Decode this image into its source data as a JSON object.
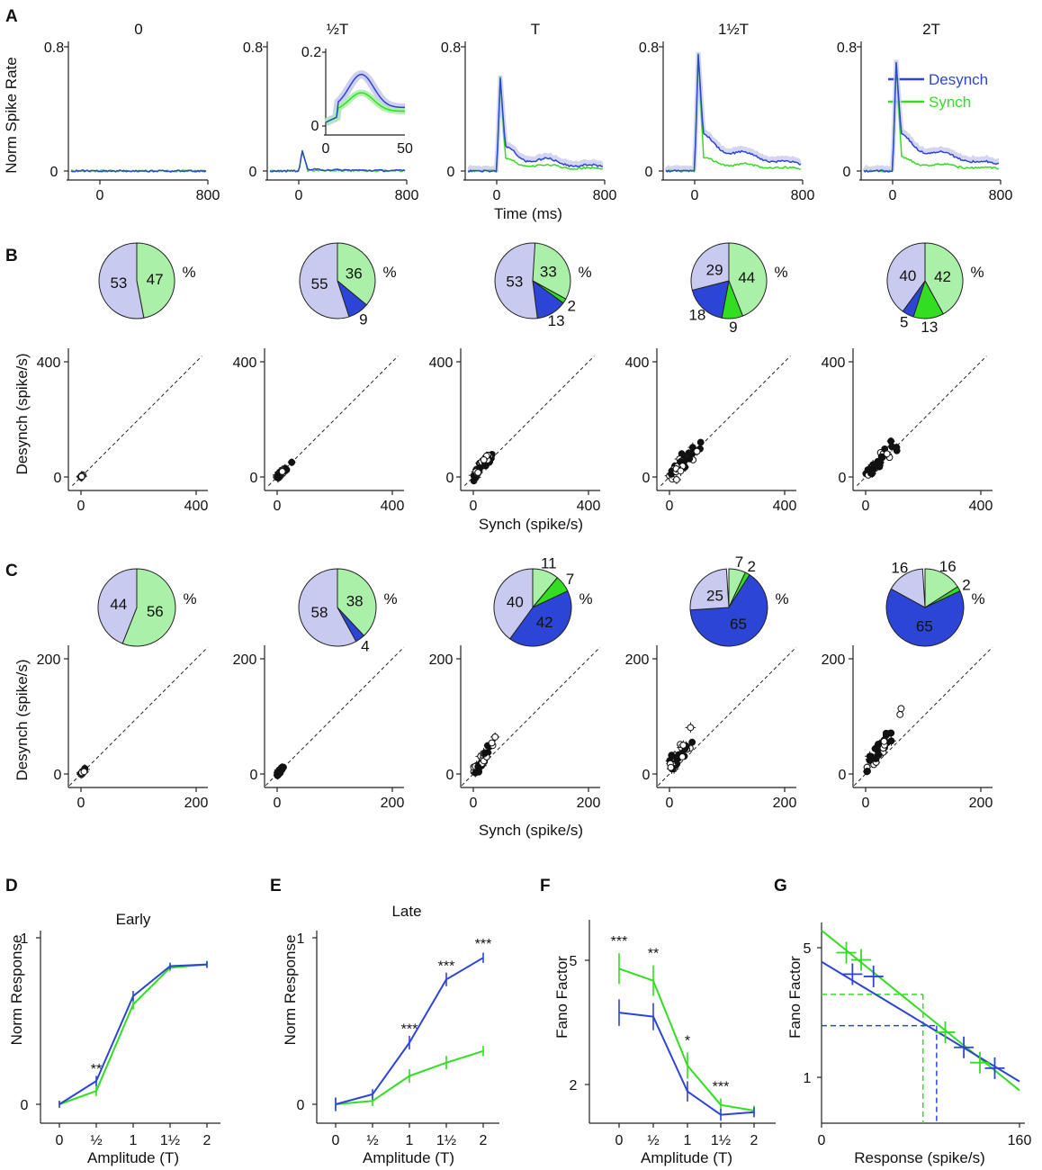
{
  "colors": {
    "desynch": "#2d45d6",
    "synch": "#33dd22",
    "desynch_light": "#c9caf0",
    "synch_light": "#aaf0a8",
    "black": "#111111"
  },
  "panels": {
    "A": "A",
    "B": "B",
    "C": "C",
    "D": "D",
    "E": "E",
    "F": "F",
    "G": "G"
  },
  "panelA": {
    "conditions": [
      "0",
      "½T",
      "T",
      "1½T",
      "2T"
    ],
    "ylabel": "Norm Spike Rate",
    "xlabel": "Time (ms)",
    "xticks": [
      "0",
      "800"
    ],
    "yticks": [
      "0",
      "0.8"
    ],
    "inset": {
      "xticks": [
        "0",
        "50"
      ],
      "yticks": [
        "0",
        "0.2"
      ]
    },
    "legend": {
      "desynch": "Desynch",
      "synch": "Synch"
    },
    "early_peak": [
      0.0,
      0.13,
      0.6,
      0.75,
      0.7
    ],
    "late_desynch": [
      0.0,
      0.01,
      0.12,
      0.2,
      0.2
    ],
    "late_synch": [
      0.0,
      0.005,
      0.06,
      0.07,
      0.07
    ]
  },
  "panelB": {
    "pies": [
      {
        "unit": "%",
        "slices": [
          {
            "value": 47,
            "label": "47",
            "cat": "synch_light"
          },
          {
            "value": 53,
            "label": "53",
            "cat": "desynch_light"
          }
        ]
      },
      {
        "unit": "%",
        "slices": [
          {
            "value": 36,
            "label": "36",
            "cat": "synch_light"
          },
          {
            "value": 9,
            "label": "9",
            "cat": "desynch"
          },
          {
            "value": 55,
            "label": "55",
            "cat": "desynch_light"
          }
        ]
      },
      {
        "unit": "%",
        "slices": [
          {
            "value": 33,
            "label": "33",
            "cat": "synch_light"
          },
          {
            "value": 2,
            "label": "2",
            "cat": "synch"
          },
          {
            "value": 13,
            "label": "13",
            "cat": "desynch"
          },
          {
            "value": 53,
            "label": "53",
            "cat": "desynch_light"
          }
        ]
      },
      {
        "unit": "%",
        "slices": [
          {
            "value": 44,
            "label": "44",
            "cat": "synch_light"
          },
          {
            "value": 9,
            "label": "9",
            "cat": "synch"
          },
          {
            "value": 18,
            "label": "18",
            "cat": "desynch"
          },
          {
            "value": 29,
            "label": "29",
            "cat": "desynch_light"
          }
        ]
      },
      {
        "unit": "%",
        "slices": [
          {
            "value": 42,
            "label": "42",
            "cat": "synch_light"
          },
          {
            "value": 13,
            "label": "13",
            "cat": "synch"
          },
          {
            "value": 5,
            "label": "5",
            "cat": "desynch"
          },
          {
            "value": 40,
            "label": "40",
            "cat": "desynch_light"
          }
        ]
      }
    ],
    "ylabel": "Desynch (spike/s)",
    "xlabel": "Synch (spike/s)",
    "ticks": [
      "0",
      "400"
    ],
    "range": [
      -30,
      420
    ],
    "scatter_spread": [
      5,
      30,
      70,
      85,
      85
    ]
  },
  "panelC": {
    "pies": [
      {
        "unit": "%",
        "slices": [
          {
            "value": 56,
            "label": "56",
            "cat": "synch_light"
          },
          {
            "value": 44,
            "label": "44",
            "cat": "desynch_light"
          }
        ]
      },
      {
        "unit": "%",
        "slices": [
          {
            "value": 38,
            "label": "38",
            "cat": "synch_light"
          },
          {
            "value": 4,
            "label": "4",
            "cat": "desynch"
          },
          {
            "value": 58,
            "label": "58",
            "cat": "desynch_light"
          }
        ]
      },
      {
        "unit": "%",
        "slices": [
          {
            "value": 11,
            "label": "11",
            "cat": "synch_light"
          },
          {
            "value": 7,
            "label": "7",
            "cat": "synch"
          },
          {
            "value": 42,
            "label": "42",
            "cat": "desynch"
          },
          {
            "value": 40,
            "label": "40",
            "cat": "desynch_light"
          }
        ]
      },
      {
        "unit": "%",
        "slices": [
          {
            "value": 7,
            "label": "7",
            "cat": "synch_light"
          },
          {
            "value": 2,
            "label": "2",
            "cat": "synch"
          },
          {
            "value": 65,
            "label": "65",
            "cat": "desynch"
          },
          {
            "value": 25,
            "label": "25",
            "cat": "desynch_light"
          }
        ]
      },
      {
        "unit": "%",
        "slices": [
          {
            "value": 16,
            "label": "16",
            "cat": "synch_light"
          },
          {
            "value": 2,
            "label": "2",
            "cat": "synch"
          },
          {
            "value": 65,
            "label": "65",
            "cat": "desynch"
          },
          {
            "value": 16,
            "label": "16",
            "cat": "desynch_light"
          }
        ]
      }
    ],
    "ylabel": "Desynch (spike/s)",
    "xlabel": "Synch (spike/s)",
    "ticks": [
      "0",
      "200"
    ],
    "range": [
      -20,
      220
    ],
    "scatter_spread": [
      5,
      10,
      30,
      40,
      45
    ]
  },
  "panelD": {
    "title": "Early",
    "ylabel": "Norm Response",
    "xlabel": "Amplitude (T)",
    "xticks": [
      "0",
      "½",
      "1",
      "1½",
      "2"
    ],
    "yticks": [
      "0",
      "1"
    ],
    "desynch": [
      0,
      0.14,
      0.65,
      0.83,
      0.84
    ],
    "synch": [
      0,
      0.08,
      0.6,
      0.82,
      0.84
    ],
    "err": [
      0.01,
      0.02,
      0.02,
      0.01,
      0.01
    ],
    "stars": [
      "",
      "**",
      "",
      "",
      ""
    ]
  },
  "panelE": {
    "title": "Late",
    "ylabel": "Norm Response",
    "xlabel": "Amplitude (T)",
    "xticks": [
      "0",
      "½",
      "1",
      "1½",
      "2"
    ],
    "yticks": [
      "0",
      "1"
    ],
    "desynch": [
      0,
      0.06,
      0.37,
      0.75,
      0.88
    ],
    "synch": [
      0,
      0.02,
      0.17,
      0.25,
      0.32
    ],
    "err": [
      0.03,
      0.02,
      0.03,
      0.03,
      0.02
    ],
    "stars": [
      "",
      "",
      "***",
      "***",
      "***"
    ]
  },
  "panelF": {
    "ylabel": "Fano Factor",
    "xlabel": "Amplitude (T)",
    "xticks": [
      "0",
      "½",
      "1",
      "1½",
      "2"
    ],
    "yticks": [
      "2",
      "5"
    ],
    "desynch": [
      3.4,
      3.3,
      1.9,
      1.6,
      1.63
    ],
    "synch": [
      4.7,
      4.3,
      2.3,
      1.72,
      1.65
    ],
    "err_d": [
      0.3,
      0.3,
      0.12,
      0.05,
      0.04
    ],
    "err_s": [
      0.5,
      0.45,
      0.2,
      0.06,
      0.04
    ],
    "stars": [
      "***",
      "**",
      "*",
      "***",
      ""
    ]
  },
  "panelG": {
    "ylabel": "Fano Factor",
    "xlabel": "Response (spike/s)",
    "xticks": [
      "0",
      "160"
    ],
    "yticks": [
      "1",
      "5"
    ],
    "synch_line": [
      [
        0,
        6.2
      ],
      [
        160,
        0.85
      ]
    ],
    "desynch_line": [
      [
        0,
        4.2
      ],
      [
        160,
        0.95
      ]
    ],
    "synch_pts": [
      [
        20,
        4.7
      ],
      [
        32,
        4.3
      ],
      [
        100,
        1.75
      ],
      [
        128,
        1.2
      ]
    ],
    "desynch_pts": [
      [
        25,
        3.6
      ],
      [
        42,
        3.5
      ],
      [
        115,
        1.45
      ],
      [
        140,
        1.12
      ]
    ],
    "synch_ref": {
      "x": 82,
      "y": 2.8
    },
    "desynch_ref": {
      "x": 93,
      "y": 1.9
    }
  }
}
